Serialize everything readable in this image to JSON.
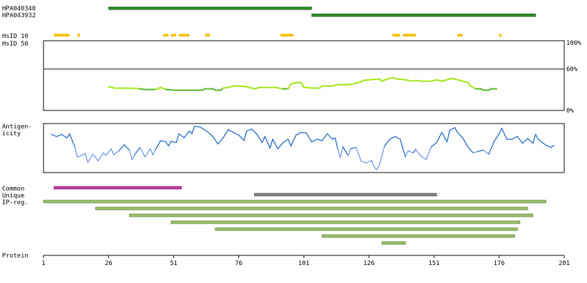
{
  "antibodies": [
    {
      "name": "HPA040348",
      "start": 26,
      "end": 104,
      "color": "#2e8b2e"
    },
    {
      "name": "HPA043932",
      "start": 104,
      "end": 190,
      "color": "#2e8b2e"
    }
  ],
  "labels": {
    "hsid10": "HsID 10",
    "hsid50": "HsID 50",
    "antigenicity_line1": "Antigen-",
    "antigenicity_line2": "icity",
    "common": "Common",
    "unique": "Unique",
    "ipreg": "IP-reg.",
    "protein": "Protein"
  },
  "identity_scale": {
    "top": "100%",
    "mid": "60%",
    "bottom": "0%"
  },
  "hsid10_segments": [
    [
      5,
      11
    ],
    [
      14,
      15
    ],
    [
      47,
      49
    ],
    [
      50,
      52
    ],
    [
      53,
      57
    ],
    [
      63,
      65
    ],
    [
      92,
      97
    ],
    [
      135,
      138
    ],
    [
      139,
      144
    ],
    [
      160,
      162
    ],
    [
      176,
      177
    ]
  ],
  "identity_curve": [
    [
      26,
      33
    ],
    [
      27,
      34
    ],
    [
      28,
      32
    ],
    [
      30,
      32
    ],
    [
      35,
      32
    ],
    [
      38,
      31
    ],
    [
      40,
      30
    ],
    [
      44,
      30
    ],
    [
      46,
      33
    ],
    [
      48,
      30
    ],
    [
      52,
      29
    ],
    [
      58,
      29
    ],
    [
      62,
      29
    ],
    [
      63,
      31
    ],
    [
      66,
      31
    ],
    [
      67,
      29
    ],
    [
      69,
      29
    ],
    [
      70,
      32
    ],
    [
      72,
      33
    ],
    [
      74,
      35
    ],
    [
      76,
      35
    ],
    [
      79,
      34
    ],
    [
      82,
      31
    ],
    [
      84,
      33
    ],
    [
      90,
      33
    ],
    [
      93,
      31
    ],
    [
      95,
      31
    ],
    [
      96,
      38
    ],
    [
      98,
      40
    ],
    [
      100,
      40
    ],
    [
      101,
      33
    ],
    [
      105,
      32
    ],
    [
      107,
      32
    ],
    [
      108,
      35
    ],
    [
      112,
      35
    ],
    [
      114,
      37
    ],
    [
      118,
      37
    ],
    [
      120,
      38
    ],
    [
      122,
      40
    ],
    [
      124,
      43
    ],
    [
      126,
      44
    ],
    [
      130,
      45
    ],
    [
      131,
      42
    ],
    [
      133,
      45
    ],
    [
      135,
      47
    ],
    [
      137,
      45
    ],
    [
      140,
      44
    ],
    [
      142,
      42
    ],
    [
      144,
      43
    ],
    [
      146,
      42
    ],
    [
      150,
      42
    ],
    [
      152,
      44
    ],
    [
      154,
      42
    ],
    [
      156,
      44
    ],
    [
      158,
      46
    ],
    [
      160,
      44
    ],
    [
      162,
      42
    ],
    [
      164,
      40
    ],
    [
      165,
      35
    ],
    [
      167,
      31
    ],
    [
      169,
      31
    ],
    [
      170,
      29
    ],
    [
      172,
      29
    ],
    [
      173,
      31
    ],
    [
      175,
      31
    ]
  ],
  "antigenicity_curve": [
    [
      4,
      55
    ],
    [
      6,
      52
    ],
    [
      8,
      55
    ],
    [
      10,
      50
    ],
    [
      11,
      56
    ],
    [
      13,
      37
    ],
    [
      14,
      22
    ],
    [
      15,
      23
    ],
    [
      17,
      27
    ],
    [
      18,
      14
    ],
    [
      20,
      26
    ],
    [
      22,
      16
    ],
    [
      24,
      28
    ],
    [
      25,
      24
    ],
    [
      27,
      34
    ],
    [
      28,
      25
    ],
    [
      30,
      31
    ],
    [
      32,
      40
    ],
    [
      34,
      32
    ],
    [
      35,
      18
    ],
    [
      36,
      25
    ],
    [
      38,
      36
    ],
    [
      40,
      22
    ],
    [
      42,
      34
    ],
    [
      43,
      25
    ],
    [
      44,
      33
    ],
    [
      46,
      46
    ],
    [
      48,
      44
    ],
    [
      49,
      38
    ],
    [
      50,
      45
    ],
    [
      52,
      43
    ],
    [
      53,
      56
    ],
    [
      55,
      50
    ],
    [
      57,
      60
    ],
    [
      58,
      56
    ],
    [
      59,
      67
    ],
    [
      61,
      66
    ],
    [
      62,
      64
    ],
    [
      64,
      59
    ],
    [
      66,
      52
    ],
    [
      68,
      41
    ],
    [
      70,
      50
    ],
    [
      71,
      56
    ],
    [
      72,
      62
    ],
    [
      74,
      58
    ],
    [
      76,
      54
    ],
    [
      78,
      46
    ],
    [
      79,
      60
    ],
    [
      81,
      63
    ],
    [
      83,
      55
    ],
    [
      85,
      43
    ],
    [
      86,
      52
    ],
    [
      88,
      35
    ],
    [
      89,
      48
    ],
    [
      91,
      34
    ],
    [
      93,
      43
    ],
    [
      95,
      48
    ],
    [
      96,
      38
    ],
    [
      98,
      54
    ],
    [
      100,
      58
    ],
    [
      102,
      57
    ],
    [
      104,
      44
    ],
    [
      106,
      48
    ],
    [
      108,
      46
    ],
    [
      110,
      56
    ],
    [
      112,
      48
    ],
    [
      113,
      50
    ],
    [
      114,
      34
    ],
    [
      115,
      21
    ],
    [
      116,
      37
    ],
    [
      118,
      24
    ],
    [
      119,
      34
    ],
    [
      121,
      36
    ],
    [
      123,
      16
    ],
    [
      125,
      13
    ],
    [
      127,
      17
    ],
    [
      128,
      7
    ],
    [
      129,
      3
    ],
    [
      130,
      10
    ],
    [
      132,
      38
    ],
    [
      134,
      48
    ],
    [
      136,
      52
    ],
    [
      138,
      48
    ],
    [
      140,
      22
    ],
    [
      141,
      31
    ],
    [
      143,
      28
    ],
    [
      144,
      33
    ],
    [
      146,
      23
    ],
    [
      148,
      18
    ],
    [
      150,
      37
    ],
    [
      152,
      43
    ],
    [
      154,
      58
    ],
    [
      156,
      44
    ],
    [
      157,
      61
    ],
    [
      159,
      65
    ],
    [
      160,
      58
    ],
    [
      162,
      50
    ],
    [
      164,
      37
    ],
    [
      166,
      28
    ],
    [
      168,
      30
    ],
    [
      170,
      32
    ],
    [
      172,
      26
    ],
    [
      174,
      44
    ],
    [
      176,
      56
    ],
    [
      177,
      64
    ],
    [
      179,
      48
    ],
    [
      181,
      48
    ],
    [
      183,
      52
    ],
    [
      185,
      42
    ],
    [
      187,
      49
    ],
    [
      189,
      42
    ],
    [
      190,
      55
    ],
    [
      191,
      48
    ],
    [
      193,
      42
    ],
    [
      194,
      39
    ],
    [
      196,
      36
    ],
    [
      197,
      39
    ]
  ],
  "common_bar": {
    "start": 5,
    "end": 54,
    "color": "#c23a9c"
  },
  "unique_bar": {
    "start": 82,
    "end": 152,
    "color": "#808080"
  },
  "ip_regions": [
    [
      1,
      194
    ],
    [
      21,
      187
    ],
    [
      34,
      189
    ],
    [
      50,
      184
    ],
    [
      67,
      183
    ],
    [
      108,
      182
    ],
    [
      131,
      140
    ]
  ],
  "ip_color": "#9cc26a",
  "axis": {
    "min": 1,
    "max": 201,
    "ticks": [
      "1",
      "26",
      "51",
      "76",
      "101",
      "126",
      "151",
      "176",
      "201"
    ]
  }
}
